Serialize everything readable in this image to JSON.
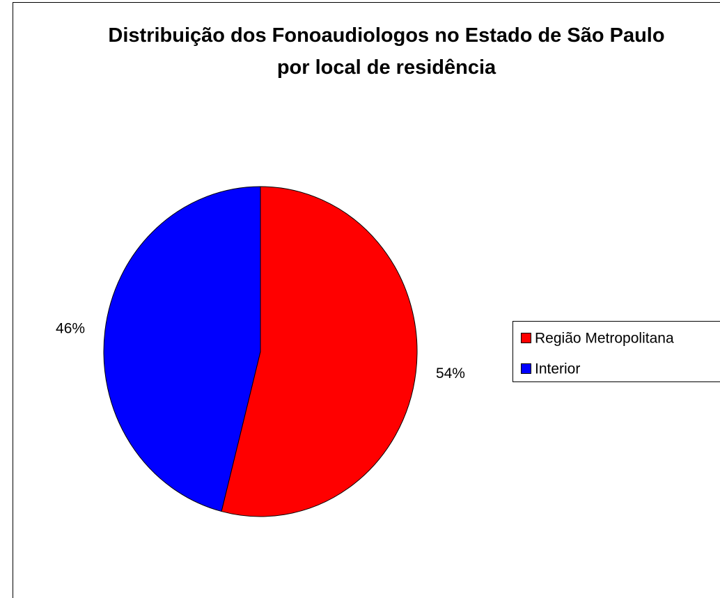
{
  "chart_data": {
    "type": "pie",
    "title": "Distribuição dos Fonoaudiologos no Estado de São Paulo por local de residência",
    "categories": [
      "Região Metropolitana",
      "Interior"
    ],
    "values": [
      54,
      46
    ],
    "value_labels": [
      "54%",
      "46%"
    ],
    "colors": [
      "#ff0000",
      "#0000ff"
    ],
    "legend": "right"
  }
}
